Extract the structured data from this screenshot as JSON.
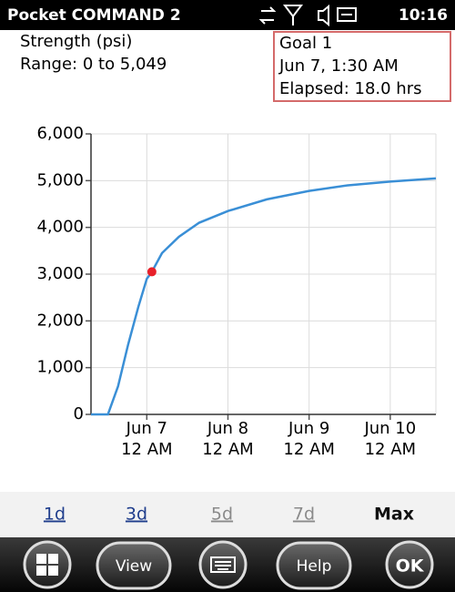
{
  "status_bar": {
    "title": "Pocket COMMAND 2",
    "time": "10:16"
  },
  "header": {
    "label": "Strength (psi)",
    "range": "Range: 0 to 5,049"
  },
  "goal_box": {
    "title": "Goal 1",
    "date": "Jun 7, 1:30 AM",
    "elapsed": "Elapsed: 18.0 hrs"
  },
  "chart_data": {
    "type": "line",
    "color": "#3a8fd6",
    "x": [
      0,
      5,
      8,
      11,
      14,
      16.5,
      18,
      21,
      26,
      32,
      40.5,
      52,
      64.5,
      76,
      88.5,
      102
    ],
    "values": [
      0,
      0,
      600,
      1500,
      2300,
      2900,
      3050,
      3450,
      3800,
      4100,
      4350,
      4600,
      4780,
      4900,
      4980,
      5049
    ],
    "marker": {
      "x": 18,
      "y": 3050,
      "color": "#e8202a"
    },
    "xlim": [
      0,
      102
    ],
    "ylim": [
      0,
      6000
    ],
    "xticks": [
      {
        "value": 16.5,
        "label": [
          "Jun 7",
          "12 AM"
        ]
      },
      {
        "value": 40.5,
        "label": [
          "Jun 8",
          "12 AM"
        ]
      },
      {
        "value": 64.5,
        "label": [
          "Jun 9",
          "12 AM"
        ]
      },
      {
        "value": 88.5,
        "label": [
          "Jun 10",
          "12 AM"
        ]
      }
    ],
    "yticks": [
      0,
      {
        "value": 1000,
        "label": "1,000"
      },
      {
        "value": 2000,
        "label": "2,000"
      },
      {
        "value": 3000,
        "label": "3,000"
      },
      {
        "value": 4000,
        "label": "4,000"
      },
      {
        "value": 5000,
        "label": "5,000"
      },
      {
        "value": 6000,
        "label": "6,000"
      }
    ],
    "grid": true
  },
  "tabs": [
    "1d",
    "3d",
    "5d",
    "7d",
    "Max"
  ],
  "buttons": [
    "View",
    "Help",
    "OK"
  ]
}
